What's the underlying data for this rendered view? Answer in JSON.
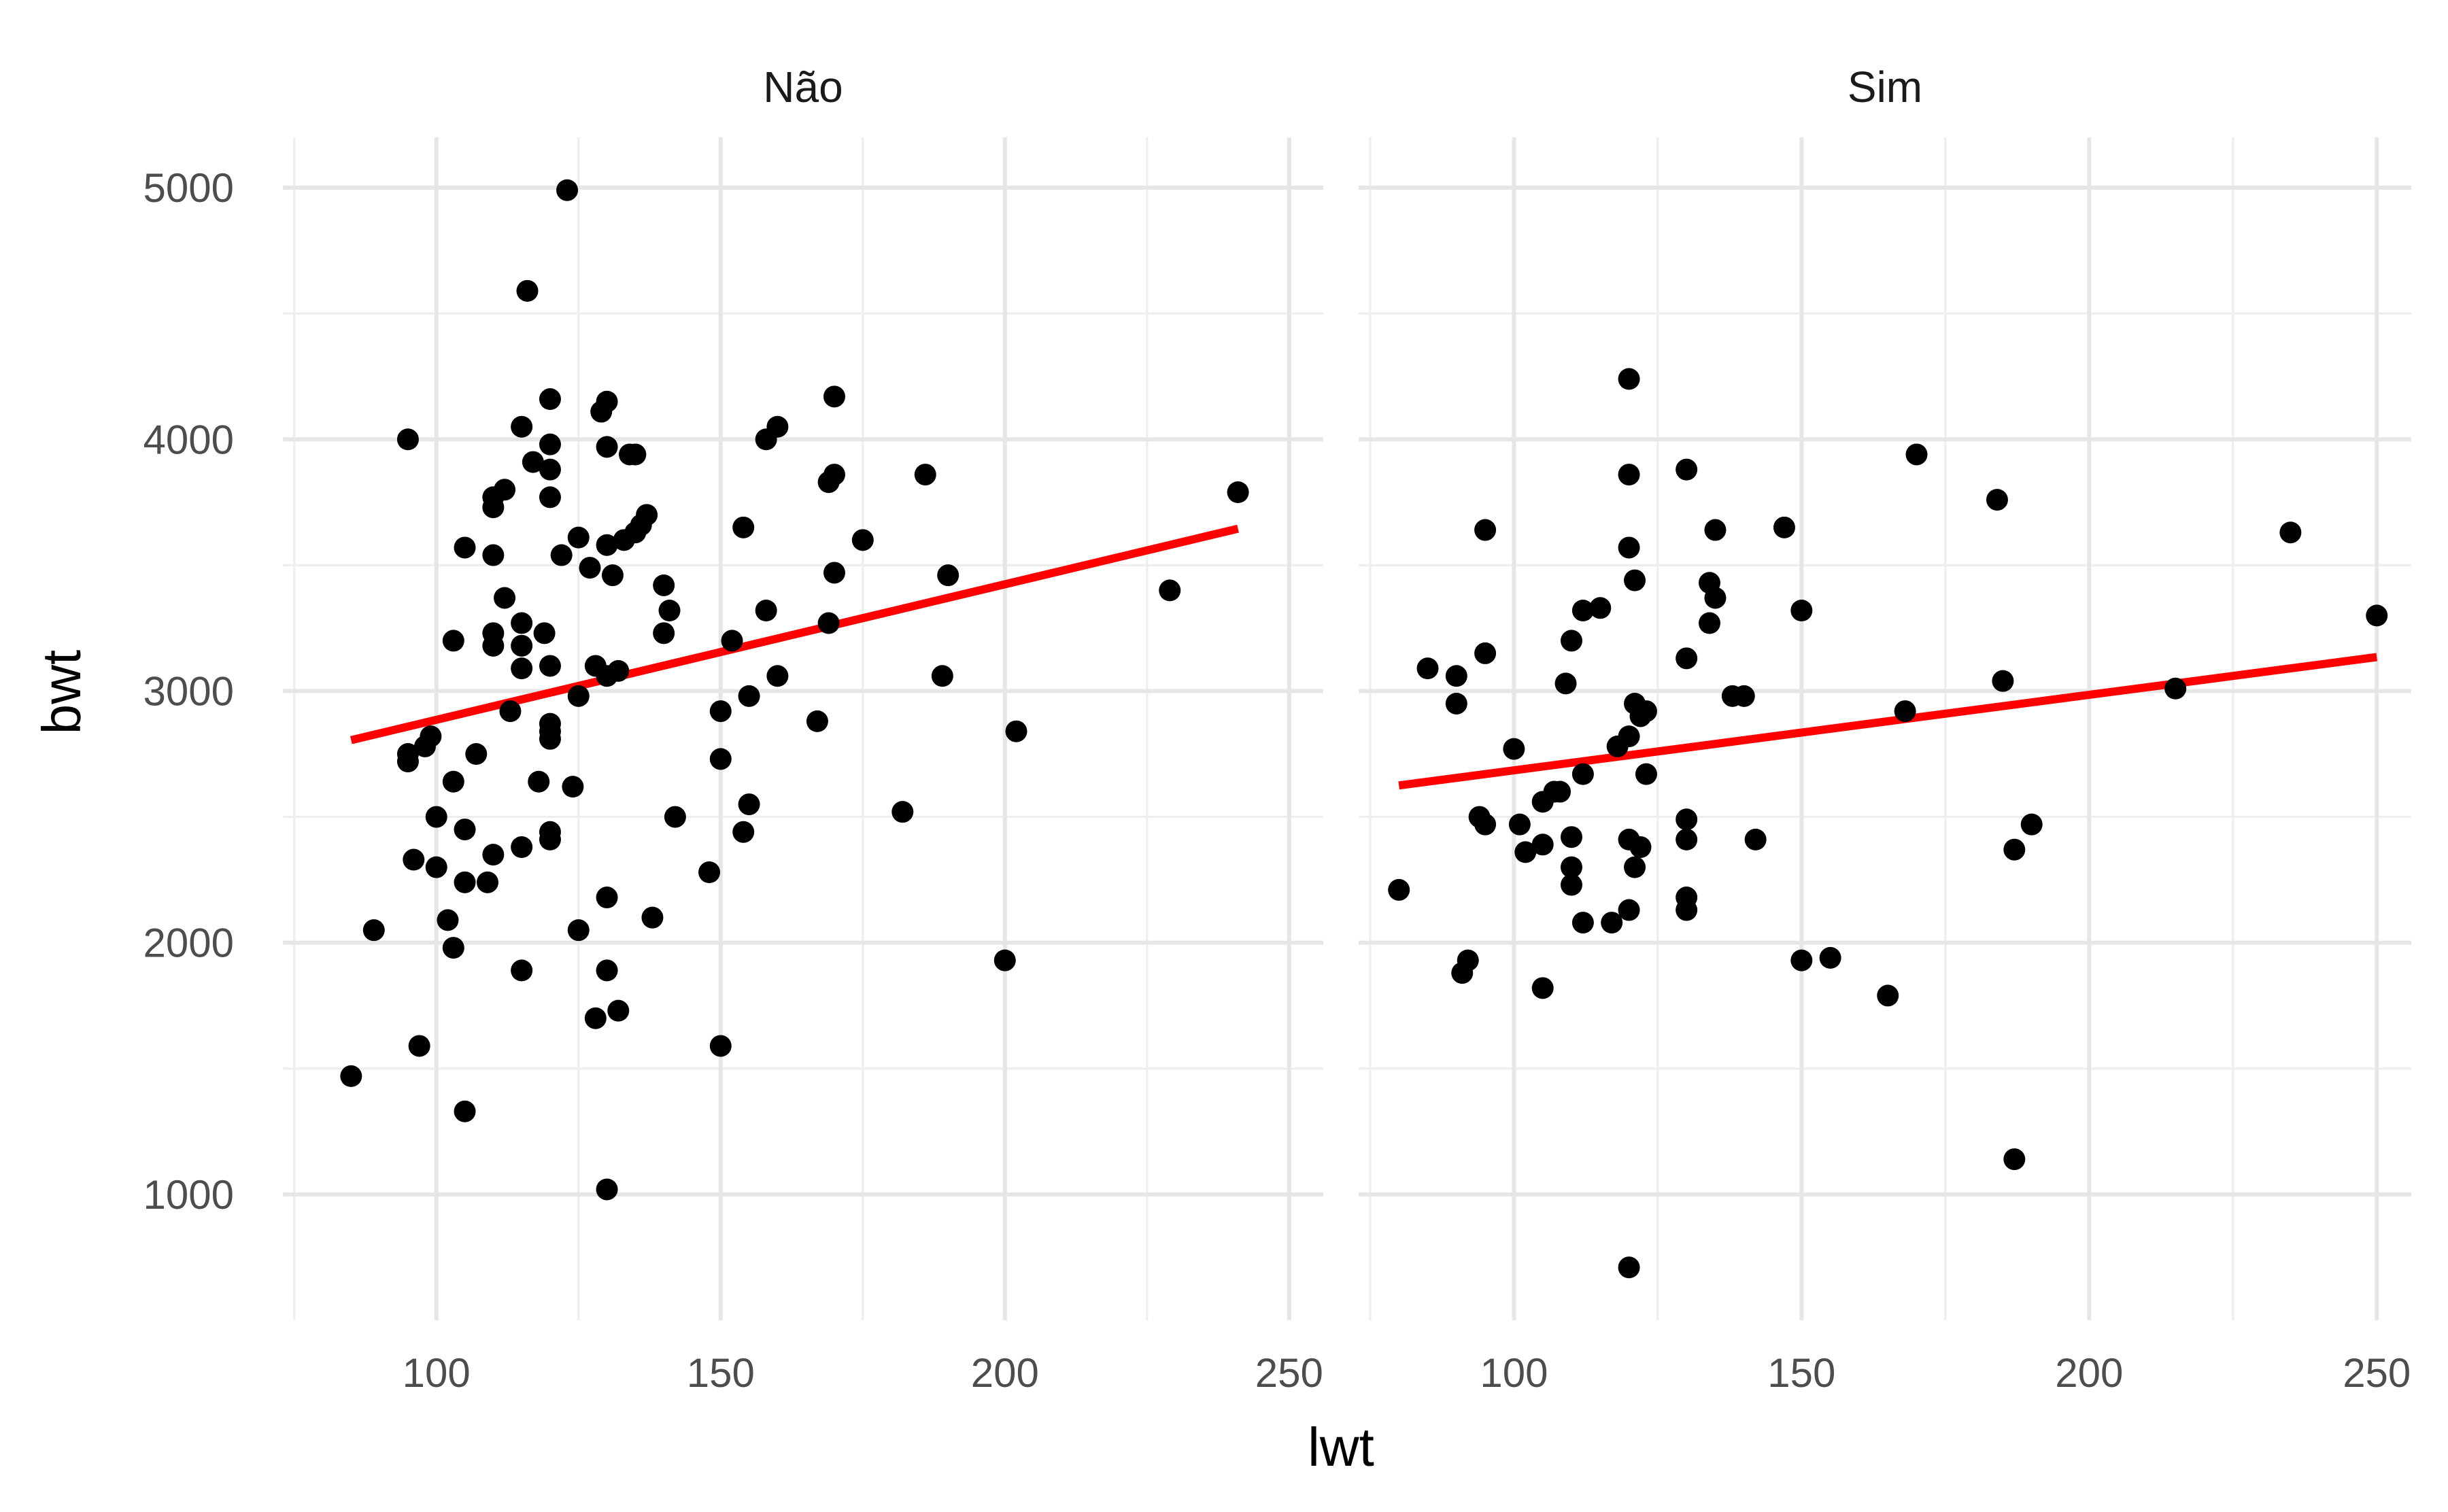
{
  "chart_data": {
    "type": "scatter",
    "xlabel": "lwt",
    "ylabel": "bwt",
    "xlim": [
      73,
      256
    ],
    "ylim": [
      500,
      5200
    ],
    "x_ticks": [
      "100",
      "150",
      "200",
      "250"
    ],
    "y_ticks": [
      "1000",
      "2000",
      "3000",
      "4000",
      "5000"
    ],
    "grid": true,
    "legend": "none",
    "colors": {
      "points": "#000000",
      "fit_line": "#ff0000",
      "grid": "#e6e6e6"
    },
    "panels": [
      {
        "name": "Não",
        "fit": {
          "x": [
            85,
            241
          ],
          "y": [
            2805,
            3645
          ]
        },
        "points": [
          [
            85,
            1470
          ],
          [
            89,
            2050
          ],
          [
            95,
            4000
          ],
          [
            95,
            2720
          ],
          [
            95,
            2750
          ],
          [
            96,
            2330
          ],
          [
            97,
            1590
          ],
          [
            98,
            2780
          ],
          [
            99,
            2820
          ],
          [
            100,
            2300
          ],
          [
            100,
            2500
          ],
          [
            102,
            2090
          ],
          [
            103,
            1980
          ],
          [
            103,
            2640
          ],
          [
            103,
            3200
          ],
          [
            105,
            3570
          ],
          [
            105,
            2450
          ],
          [
            105,
            2240
          ],
          [
            105,
            1330
          ],
          [
            107,
            2750
          ],
          [
            109,
            2240
          ],
          [
            110,
            3770
          ],
          [
            110,
            3730
          ],
          [
            110,
            3540
          ],
          [
            110,
            3230
          ],
          [
            110,
            3180
          ],
          [
            110,
            2350
          ],
          [
            112,
            3800
          ],
          [
            112,
            3370
          ],
          [
            113,
            2920
          ],
          [
            115,
            4050
          ],
          [
            115,
            3270
          ],
          [
            115,
            3180
          ],
          [
            115,
            3090
          ],
          [
            115,
            2380
          ],
          [
            115,
            1890
          ],
          [
            116,
            4590
          ],
          [
            117,
            3910
          ],
          [
            118,
            2640
          ],
          [
            119,
            3230
          ],
          [
            120,
            4160
          ],
          [
            120,
            3980
          ],
          [
            120,
            3880
          ],
          [
            120,
            3770
          ],
          [
            120,
            3100
          ],
          [
            120,
            2870
          ],
          [
            120,
            2840
          ],
          [
            120,
            2810
          ],
          [
            120,
            2440
          ],
          [
            120,
            2410
          ],
          [
            122,
            3540
          ],
          [
            123,
            4990
          ],
          [
            124,
            2620
          ],
          [
            125,
            3610
          ],
          [
            125,
            2980
          ],
          [
            125,
            2050
          ],
          [
            127,
            3490
          ],
          [
            128,
            3100
          ],
          [
            128,
            1700
          ],
          [
            129,
            4110
          ],
          [
            130,
            4150
          ],
          [
            130,
            3970
          ],
          [
            130,
            3580
          ],
          [
            130,
            3060
          ],
          [
            130,
            2180
          ],
          [
            130,
            1890
          ],
          [
            130,
            1020
          ],
          [
            131,
            3460
          ],
          [
            132,
            3080
          ],
          [
            132,
            1730
          ],
          [
            133,
            3600
          ],
          [
            134,
            3940
          ],
          [
            135,
            3630
          ],
          [
            135,
            3940
          ],
          [
            136,
            3660
          ],
          [
            137,
            3700
          ],
          [
            138,
            2100
          ],
          [
            140,
            3420
          ],
          [
            140,
            3230
          ],
          [
            141,
            3320
          ],
          [
            142,
            2500
          ],
          [
            148,
            2280
          ],
          [
            150,
            2920
          ],
          [
            150,
            2730
          ],
          [
            150,
            1590
          ],
          [
            152,
            3200
          ],
          [
            154,
            3650
          ],
          [
            154,
            2440
          ],
          [
            155,
            2980
          ],
          [
            155,
            2550
          ],
          [
            158,
            4000
          ],
          [
            158,
            3320
          ],
          [
            160,
            4050
          ],
          [
            160,
            3060
          ],
          [
            167,
            2880
          ],
          [
            169,
            3830
          ],
          [
            169,
            3270
          ],
          [
            170,
            4170
          ],
          [
            170,
            3860
          ],
          [
            170,
            3470
          ],
          [
            175,
            3600
          ],
          [
            182,
            2520
          ],
          [
            186,
            3860
          ],
          [
            189,
            3060
          ],
          [
            190,
            3460
          ],
          [
            200,
            1930
          ],
          [
            202,
            2840
          ],
          [
            229,
            3400
          ],
          [
            241,
            3790
          ]
        ]
      },
      {
        "name": "Sim",
        "fit": {
          "x": [
            80,
            250
          ],
          "y": [
            2625,
            3135
          ]
        },
        "points": [
          [
            80,
            2210
          ],
          [
            85,
            3090
          ],
          [
            90,
            3060
          ],
          [
            90,
            2950
          ],
          [
            91,
            1880
          ],
          [
            92,
            1930
          ],
          [
            94,
            2500
          ],
          [
            95,
            3640
          ],
          [
            95,
            3150
          ],
          [
            95,
            2470
          ],
          [
            100,
            2770
          ],
          [
            101,
            2470
          ],
          [
            102,
            2360
          ],
          [
            105,
            2560
          ],
          [
            105,
            2390
          ],
          [
            105,
            1820
          ],
          [
            107,
            2600
          ],
          [
            108,
            2600
          ],
          [
            109,
            3030
          ],
          [
            110,
            3200
          ],
          [
            110,
            2420
          ],
          [
            110,
            2300
          ],
          [
            110,
            2230
          ],
          [
            112,
            3320
          ],
          [
            112,
            2670
          ],
          [
            112,
            2080
          ],
          [
            115,
            3330
          ],
          [
            117,
            2080
          ],
          [
            118,
            2780
          ],
          [
            120,
            4240
          ],
          [
            120,
            3860
          ],
          [
            120,
            3570
          ],
          [
            120,
            2820
          ],
          [
            120,
            2410
          ],
          [
            120,
            2130
          ],
          [
            120,
            710
          ],
          [
            121,
            3440
          ],
          [
            121,
            2950
          ],
          [
            121,
            2300
          ],
          [
            122,
            2380
          ],
          [
            122,
            2900
          ],
          [
            123,
            2920
          ],
          [
            123,
            2670
          ],
          [
            130,
            3880
          ],
          [
            130,
            3130
          ],
          [
            130,
            2490
          ],
          [
            130,
            2410
          ],
          [
            130,
            2180
          ],
          [
            130,
            2130
          ],
          [
            134,
            3270
          ],
          [
            134,
            3430
          ],
          [
            135,
            3640
          ],
          [
            135,
            3370
          ],
          [
            138,
            2980
          ],
          [
            140,
            2980
          ],
          [
            142,
            2410
          ],
          [
            147,
            3650
          ],
          [
            150,
            3320
          ],
          [
            150,
            1930
          ],
          [
            155,
            1940
          ],
          [
            165,
            1790
          ],
          [
            168,
            2920
          ],
          [
            170,
            3940
          ],
          [
            184,
            3760
          ],
          [
            185,
            3040
          ],
          [
            187,
            2370
          ],
          [
            187,
            1140
          ],
          [
            190,
            2470
          ],
          [
            215,
            3010
          ],
          [
            235,
            3630
          ],
          [
            250,
            3300
          ]
        ]
      }
    ]
  }
}
